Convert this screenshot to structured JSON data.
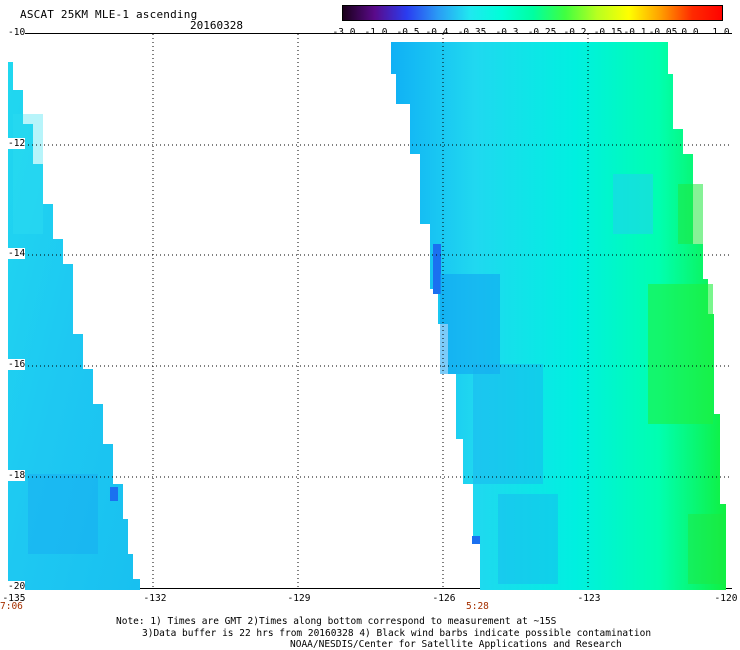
{
  "header": {
    "title": "ASCAT 25KM MLE-1 ascending",
    "date": "20160328"
  },
  "colorbar": {
    "labels": [
      "-3.0",
      "-1.0",
      "-0.5",
      "-0.4",
      "-0.35",
      "-0.3",
      "-0.25",
      "-0.2",
      "-0.15",
      "-0.1",
      "-0.05",
      "0.0",
      "1.0"
    ],
    "colors": [
      "#1a001a",
      "#5a0a8a",
      "#2a3cf0",
      "#2a9cf5",
      "#20e8f0",
      "#00ffd8",
      "#00ffa0",
      "#40ff40",
      "#b8ff20",
      "#ffff00",
      "#ffa000",
      "#ff2a00",
      "#ff0000"
    ]
  },
  "map": {
    "lat_labels": [
      "-10",
      "-12",
      "-14",
      "-16",
      "-18",
      "-20"
    ],
    "lon_labels": [
      "-135",
      "-132",
      "-129",
      "-126",
      "-123",
      "-120"
    ],
    "lat_range": [
      -20,
      -10
    ],
    "lon_range": [
      -135,
      -120
    ],
    "swath_times": [
      "7:06",
      "5:28"
    ]
  },
  "notes": {
    "line1": "Note: 1) Times are GMT 2)Times along bottom correspond to measurement at ~15S",
    "line2": "3)Data buffer is 22 hrs from 20160328 4) Black wind barbs indicate possible contamination",
    "line3": "NOAA/NESDIS/Center for Satellite Applications and Research"
  }
}
